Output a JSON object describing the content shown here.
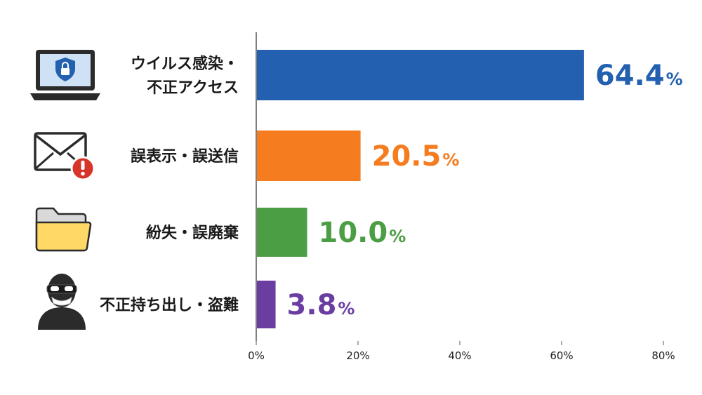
{
  "chart_data": {
    "type": "bar",
    "orientation": "horizontal",
    "title": "",
    "xlabel": "",
    "ylabel": "",
    "categories": [
      {
        "lines": [
          "ウイルス感染・",
          "不正アクセス"
        ],
        "icon": "laptop-shield-lock-icon"
      },
      {
        "lines": [
          "誤表示・誤送信"
        ],
        "icon": "envelope-warning-icon"
      },
      {
        "lines": [
          "紛失・誤廃棄"
        ],
        "icon": "folder-icon"
      },
      {
        "lines": [
          "不正持ち出し・盗難"
        ],
        "icon": "masked-thief-icon"
      }
    ],
    "values": [
      64.4,
      20.5,
      10.0,
      3.8
    ],
    "value_labels": [
      "64.4",
      "20.5",
      "10.0",
      "3.8"
    ],
    "value_suffix": "%",
    "colors": [
      "#2460B0",
      "#F57C1F",
      "#4C9E45",
      "#6A3EA1"
    ],
    "xlim": [
      0,
      80
    ],
    "ticks": [
      0,
      20,
      40,
      60,
      80
    ],
    "tick_labels": [
      "0%",
      "20%",
      "40%",
      "60%",
      "80%"
    ],
    "grid": false,
    "legend": "none"
  }
}
